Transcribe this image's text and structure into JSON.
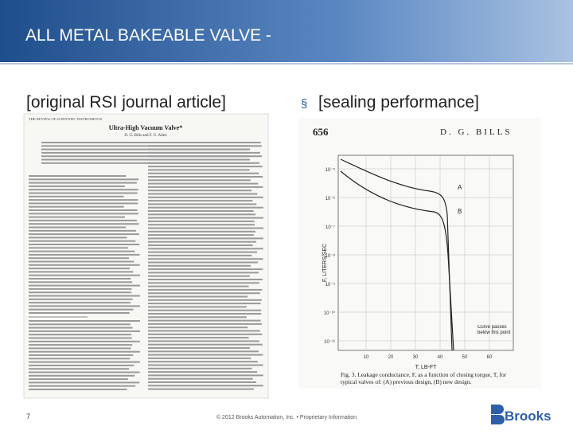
{
  "header": {
    "title": "ALL METAL BAKEABLE VALVE -"
  },
  "left": {
    "caption": "[original RSI journal article]",
    "article": {
      "journal": "THE REVIEW OF SCIENTIFIC INSTRUMENTS",
      "title": "Ultra-High Vacuum Valve*",
      "authors": "D. G. Bills and F. G. Allen"
    }
  },
  "right": {
    "caption": "[sealing performance]",
    "figure": {
      "page_number": "656",
      "running_head": "D. G. BILLS",
      "y_axis_label": "F, LITERS/SEC",
      "x_axis_label": "T, LB-FT",
      "y_tick_labels": [
        "10⁻⁵",
        "10⁻⁶",
        "10⁻⁷",
        "10⁻⁸",
        "10⁻⁹",
        "10⁻¹⁰",
        "10⁻¹¹"
      ],
      "x_tick_labels": [
        "10",
        "20",
        "30",
        "40",
        "50",
        "60"
      ],
      "curve_labels": [
        "A",
        "B"
      ],
      "annotation": "Curve passes below this point",
      "caption": "Fig. 3. Leakage conductance, F, as a function of closing torque, T, for typical valves of: (A) previous design, (B) new design."
    }
  },
  "footer": {
    "slide_number": "7",
    "copyright": "© 2012 Brooks Automation, Inc. • Proprietary Information",
    "logo": "Brooks"
  }
}
